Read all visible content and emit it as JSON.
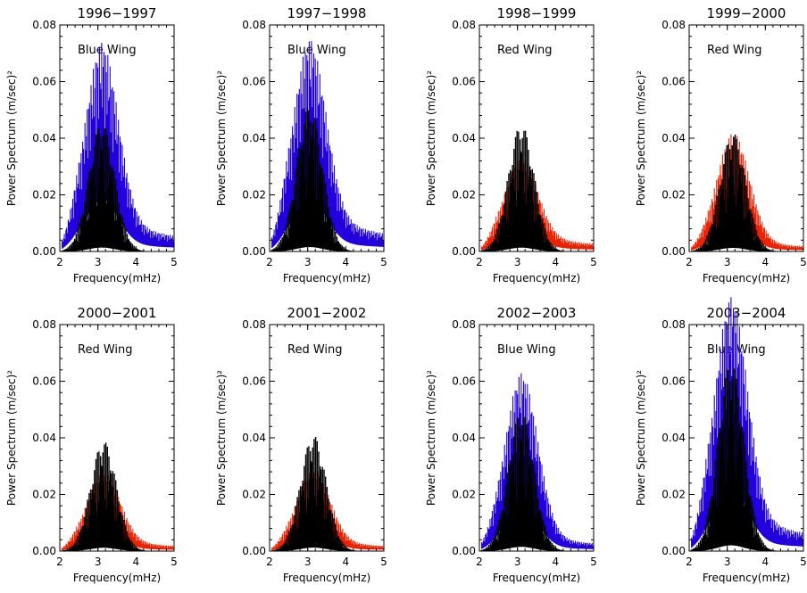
{
  "chart_data": [
    {
      "type": "line",
      "title": "1996−1997",
      "annotation": "Blue Wing",
      "xlabel": "Frequency(mHz)",
      "ylabel": "Power Spectrum (m/sec)²",
      "xlim": [
        2,
        5
      ],
      "ylim": [
        0,
        0.08
      ],
      "xticks": [
        "2",
        "3",
        "4",
        "5"
      ],
      "yticks": [
        "0.00",
        "0.02",
        "0.04",
        "0.06",
        "0.08"
      ],
      "grid": false,
      "colored_series_color": "#2200dd",
      "colored_peak": 0.062,
      "colored_floor": 0.012,
      "black_peak": 0.046,
      "peak_freq": 3.1
    },
    {
      "type": "line",
      "title": "1997−1998",
      "annotation": "Blue Wing",
      "xlabel": "Frequency(mHz)",
      "ylabel": "Power Spectrum (m/sec)²",
      "xlim": [
        2,
        5
      ],
      "ylim": [
        0,
        0.08
      ],
      "xticks": [
        "2",
        "3",
        "4",
        "5"
      ],
      "yticks": [
        "0.00",
        "0.02",
        "0.04",
        "0.06",
        "0.08"
      ],
      "grid": false,
      "colored_series_color": "#2200dd",
      "colored_peak": 0.061,
      "colored_floor": 0.014,
      "black_peak": 0.052,
      "peak_freq": 3.05
    },
    {
      "type": "line",
      "title": "1998−1999",
      "annotation": "Red Wing",
      "xlabel": "Frequency(mHz)",
      "ylabel": "Power Spectrum (m/sec)²",
      "xlim": [
        2,
        5
      ],
      "ylim": [
        0,
        0.08
      ],
      "xticks": [
        "2",
        "3",
        "4",
        "5"
      ],
      "yticks": [
        "0.00",
        "0.02",
        "0.04",
        "0.06",
        "0.08"
      ],
      "grid": false,
      "colored_series_color": "#ee2200",
      "colored_peak": 0.027,
      "colored_floor": 0.006,
      "black_peak": 0.045,
      "peak_freq": 3.1
    },
    {
      "type": "line",
      "title": "1999−2000",
      "annotation": "Red Wing",
      "xlabel": "Frequency(mHz)",
      "ylabel": "Power Spectrum (m/sec)²",
      "xlim": [
        2,
        5
      ],
      "ylim": [
        0,
        0.08
      ],
      "xticks": [
        "2",
        "3",
        "4",
        "5"
      ],
      "yticks": [
        "0.00",
        "0.02",
        "0.04",
        "0.06",
        "0.08"
      ],
      "grid": false,
      "colored_series_color": "#ee2200",
      "colored_peak": 0.038,
      "colored_floor": 0.004,
      "black_peak": 0.042,
      "peak_freq": 3.15
    },
    {
      "type": "line",
      "title": "2000−2001",
      "annotation": "Red Wing",
      "xlabel": "Frequency(mHz)",
      "ylabel": "Power Spectrum (m/sec)²",
      "xlim": [
        2,
        5
      ],
      "ylim": [
        0,
        0.08
      ],
      "xticks": [
        "2",
        "3",
        "4",
        "5"
      ],
      "yticks": [
        "0.00",
        "0.02",
        "0.04",
        "0.06",
        "0.08"
      ],
      "grid": false,
      "colored_series_color": "#ee2200",
      "colored_peak": 0.024,
      "colored_floor": 0.004,
      "black_peak": 0.039,
      "peak_freq": 3.15
    },
    {
      "type": "line",
      "title": "2001−2002",
      "annotation": "Red Wing",
      "xlabel": "Frequency(mHz)",
      "ylabel": "Power Spectrum (m/sec)²",
      "xlim": [
        2,
        5
      ],
      "ylim": [
        0,
        0.08
      ],
      "xticks": [
        "2",
        "3",
        "4",
        "5"
      ],
      "yticks": [
        "0.00",
        "0.02",
        "0.04",
        "0.06",
        "0.08"
      ],
      "grid": false,
      "colored_series_color": "#ee2200",
      "colored_peak": 0.025,
      "colored_floor": 0.004,
      "black_peak": 0.041,
      "peak_freq": 3.15
    },
    {
      "type": "line",
      "title": "2002−2003",
      "annotation": "Blue Wing",
      "xlabel": "Frequency(mHz)",
      "ylabel": "Power Spectrum (m/sec)²",
      "xlim": [
        2,
        5
      ],
      "ylim": [
        0,
        0.08
      ],
      "xticks": [
        "2",
        "3",
        "4",
        "5"
      ],
      "yticks": [
        "0.00",
        "0.02",
        "0.04",
        "0.06",
        "0.08"
      ],
      "grid": false,
      "colored_series_color": "#2200dd",
      "colored_peak": 0.057,
      "colored_floor": 0.006,
      "black_peak": 0.05,
      "peak_freq": 3.1
    },
    {
      "type": "line",
      "title": "2003−2004",
      "annotation": "Blue Wing",
      "xlabel": "Frequency(mHz)",
      "ylabel": "Power Spectrum (m/sec)²",
      "xlim": [
        2,
        5
      ],
      "ylim": [
        0,
        0.08
      ],
      "xticks": [
        "2",
        "3",
        "4",
        "5"
      ],
      "yticks": [
        "0.00",
        "0.02",
        "0.04",
        "0.06",
        "0.08"
      ],
      "grid": false,
      "colored_series_color": "#2200dd",
      "colored_peak": 0.076,
      "colored_floor": 0.014,
      "black_peak": 0.068,
      "peak_freq": 3.1
    }
  ]
}
